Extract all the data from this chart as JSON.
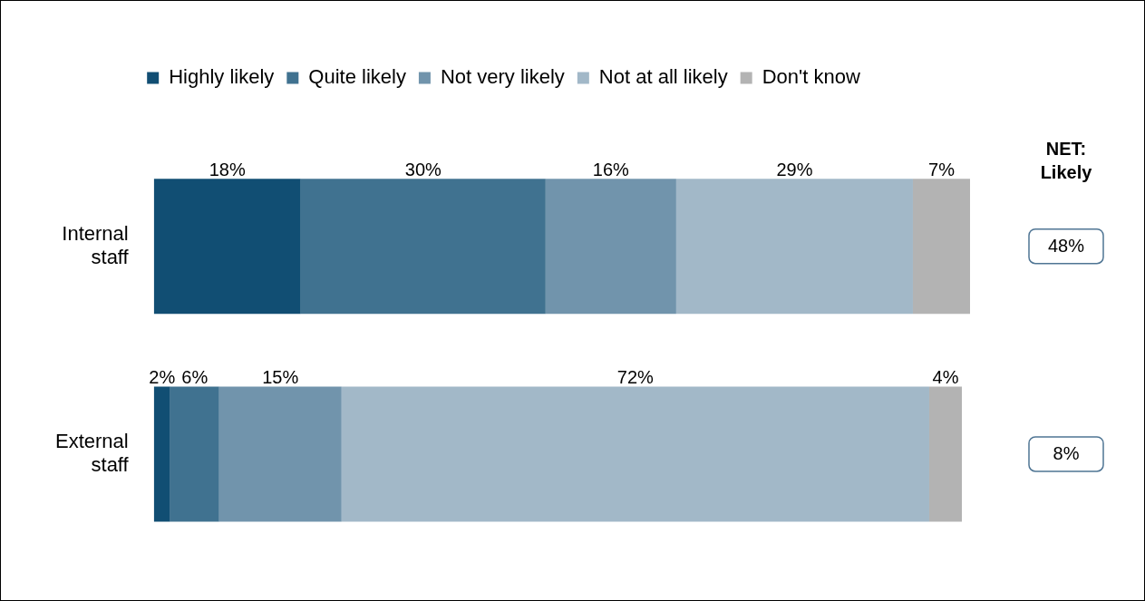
{
  "chart_data": {
    "type": "bar",
    "orientation": "horizontal",
    "stacked": true,
    "categories": [
      "Internal staff",
      "External staff"
    ],
    "series": [
      {
        "name": "Highly likely",
        "color": "#114e73",
        "values": [
          18,
          2
        ],
        "value_labels": [
          "18%",
          "2%"
        ]
      },
      {
        "name": "Quite likely",
        "color": "#407290",
        "values": [
          30,
          6
        ],
        "value_labels": [
          "30%",
          "6%"
        ]
      },
      {
        "name": "Not very likely",
        "color": "#7194ac",
        "values": [
          16,
          15
        ],
        "value_labels": [
          "16%",
          "15%"
        ]
      },
      {
        "name": "Not at all likely",
        "color": "#a2b8c8",
        "values": [
          29,
          72
        ],
        "value_labels": [
          "29%",
          "72%"
        ]
      },
      {
        "name": "Don't know",
        "color": "#b3b3b3",
        "values": [
          7,
          4
        ],
        "value_labels": [
          "7%",
          "4%"
        ]
      }
    ],
    "legend": "top",
    "annotations": [
      "NET: Likely",
      "48%",
      "8%"
    ]
  }
}
